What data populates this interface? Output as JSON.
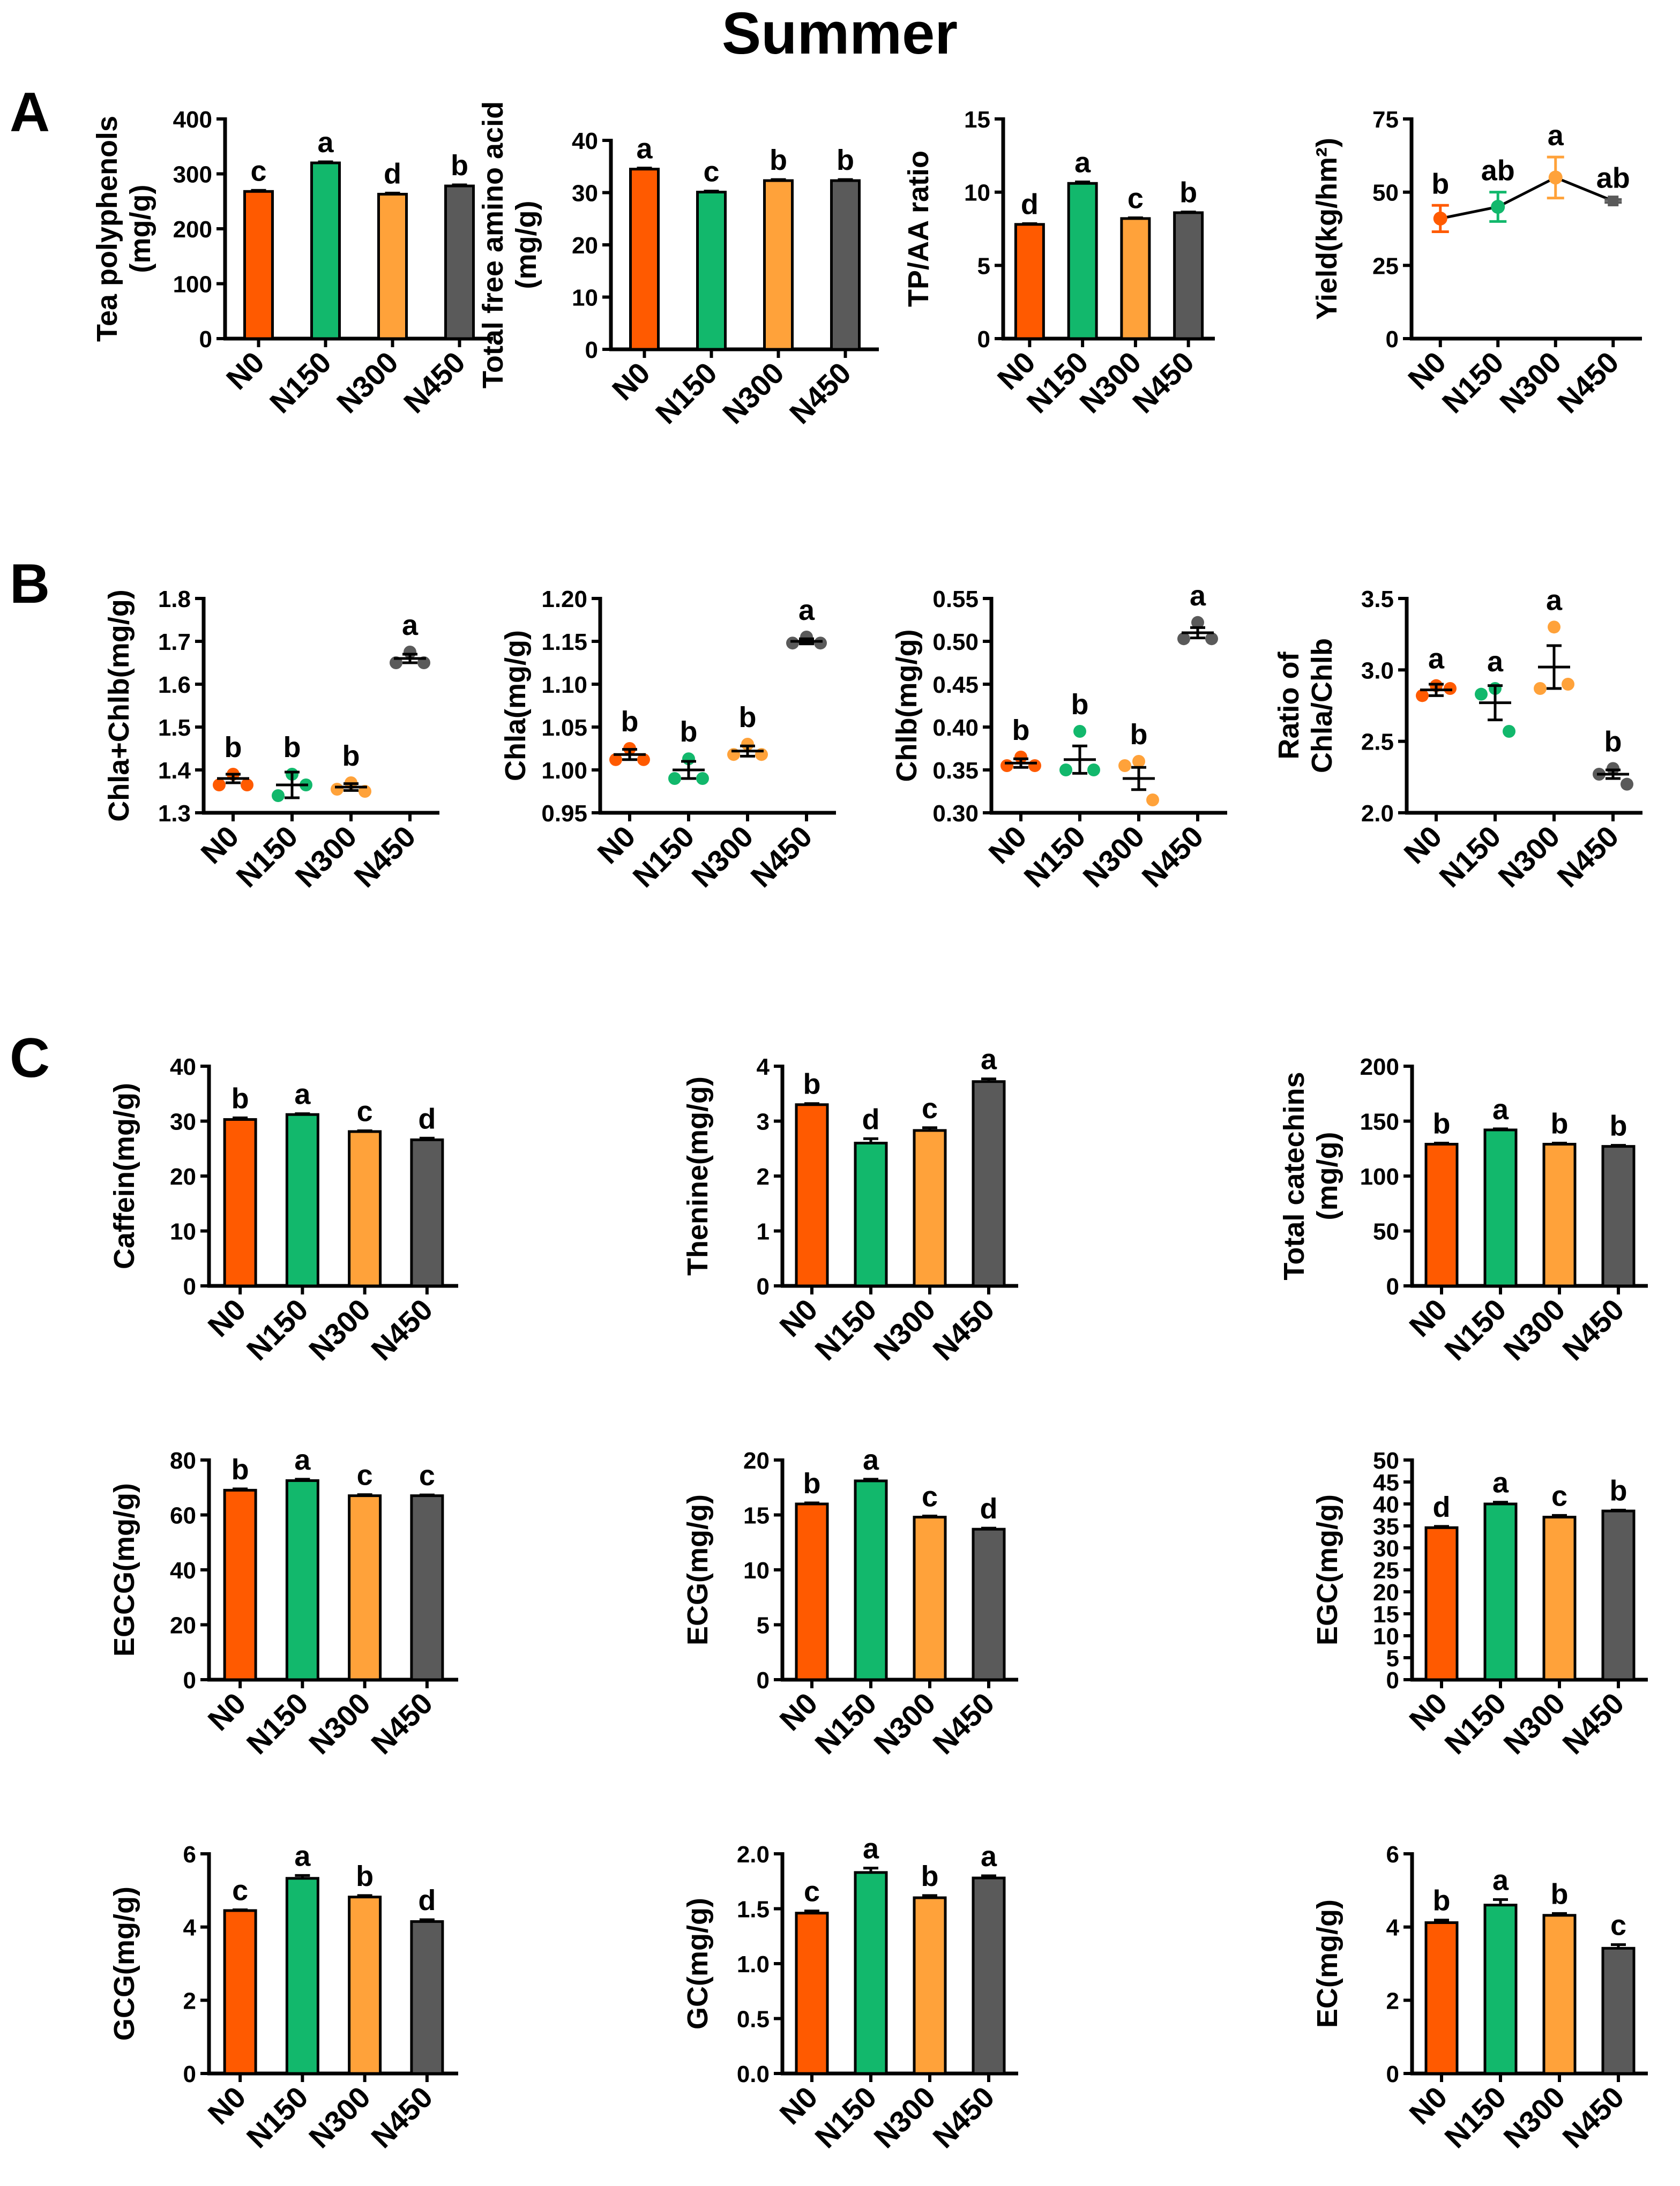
{
  "figure_title": "Summer",
  "panel_letters": [
    "A",
    "B",
    "C"
  ],
  "colors": {
    "N0": "#ff5a00",
    "N150": "#12b86c",
    "N300": "#ffa23a",
    "N450": "#5a5a5a"
  },
  "chart_data": [
    {
      "type": "bar",
      "panel": "A",
      "categories": [
        "N0",
        "N150",
        "N300",
        "N450"
      ],
      "ylabel": [
        "Tea polyphenols",
        "(mg/g)"
      ],
      "ylim": [
        0,
        400
      ],
      "yticks": [
        0,
        100,
        200,
        300,
        400
      ],
      "values": [
        268,
        320,
        263,
        278
      ],
      "errors": [
        2,
        2,
        2,
        2
      ],
      "letters": [
        "c",
        "a",
        "d",
        "b"
      ]
    },
    {
      "type": "bar",
      "panel": "A",
      "categories": [
        "N0",
        "N150",
        "N300",
        "N450"
      ],
      "ylabel": [
        "Total free amino acid",
        "(mg/g)"
      ],
      "ylim": [
        0,
        40
      ],
      "yticks": [
        0,
        10,
        20,
        30,
        40
      ],
      "values": [
        34.5,
        30.1,
        32.3,
        32.3
      ],
      "errors": [
        0.2,
        0.2,
        0.2,
        0.2
      ],
      "letters": [
        "a",
        "c",
        "b",
        "b"
      ]
    },
    {
      "type": "bar",
      "panel": "A",
      "categories": [
        "N0",
        "N150",
        "N300",
        "N450"
      ],
      "ylabel": [
        "TP/AA ratio"
      ],
      "ylim": [
        0,
        15
      ],
      "yticks": [
        0,
        5,
        10,
        15
      ],
      "values": [
        7.8,
        10.6,
        8.2,
        8.6
      ],
      "errors": [
        0.05,
        0.1,
        0.05,
        0.05
      ],
      "letters": [
        "d",
        "a",
        "c",
        "b"
      ]
    },
    {
      "type": "line",
      "panel": "A",
      "categories": [
        "N0",
        "N150",
        "N300",
        "N450"
      ],
      "ylabel": [
        "Yield(kg/hm²)"
      ],
      "ylim": [
        0,
        75
      ],
      "yticks": [
        0,
        25,
        50,
        75
      ],
      "values": [
        41,
        45,
        55,
        47
      ],
      "errors": [
        4.5,
        5,
        7,
        0.5
      ],
      "letters": [
        "b",
        "ab",
        "a",
        "ab"
      ]
    },
    {
      "type": "scatter",
      "panel": "B",
      "categories": [
        "N0",
        "N150",
        "N300",
        "N450"
      ],
      "ylabel": [
        "Chla+Chlb(mg/g)"
      ],
      "ylim": [
        1.3,
        1.8
      ],
      "yticks": [
        1.3,
        1.4,
        1.5,
        1.6,
        1.7,
        1.8
      ],
      "tick_decimals": 1,
      "means": [
        1.38,
        1.365,
        1.36,
        1.66
      ],
      "errors": [
        0.01,
        0.03,
        0.008,
        0.01
      ],
      "points": [
        [
          1.39,
          1.365,
          1.365
        ],
        [
          1.39,
          1.34,
          1.365
        ],
        [
          1.37,
          1.355,
          1.35
        ],
        [
          1.675,
          1.65,
          1.65
        ]
      ],
      "letters": [
        "b",
        "b",
        "b",
        "a"
      ]
    },
    {
      "type": "scatter",
      "panel": "B",
      "categories": [
        "N0",
        "N150",
        "N300",
        "N450"
      ],
      "ylabel": [
        "Chla(mg/g)"
      ],
      "ylim": [
        0.95,
        1.2
      ],
      "yticks": [
        0.95,
        1.0,
        1.05,
        1.1,
        1.15,
        1.2
      ],
      "tick_decimals": 2,
      "means": [
        1.018,
        1.0,
        1.022,
        1.15
      ],
      "errors": [
        0.006,
        0.01,
        0.006,
        0.003
      ],
      "points": [
        [
          1.025,
          1.012,
          1.012
        ],
        [
          1.013,
          0.99,
          0.99
        ],
        [
          1.03,
          1.018,
          1.018
        ],
        [
          1.155,
          1.148,
          1.148
        ]
      ],
      "letters": [
        "b",
        "b",
        "b",
        "a"
      ]
    },
    {
      "type": "scatter",
      "panel": "B",
      "categories": [
        "N0",
        "N150",
        "N300",
        "N450"
      ],
      "ylabel": [
        "Chlb(mg/g)"
      ],
      "ylim": [
        0.3,
        0.55
      ],
      "yticks": [
        0.3,
        0.35,
        0.4,
        0.45,
        0.5,
        0.55
      ],
      "tick_decimals": 2,
      "means": [
        0.358,
        0.362,
        0.34,
        0.51
      ],
      "errors": [
        0.005,
        0.016,
        0.013,
        0.006
      ],
      "points": [
        [
          0.365,
          0.355,
          0.355
        ],
        [
          0.395,
          0.35,
          0.35
        ],
        [
          0.36,
          0.355,
          0.315
        ],
        [
          0.522,
          0.503,
          0.503
        ]
      ],
      "letters": [
        "b",
        "b",
        "b",
        "a"
      ]
    },
    {
      "type": "scatter",
      "panel": "B",
      "categories": [
        "N0",
        "N150",
        "N300",
        "N450"
      ],
      "ylabel": [
        "Ratio of",
        "Chla/Chlb"
      ],
      "ylim": [
        2.0,
        3.5
      ],
      "yticks": [
        2.0,
        2.5,
        3.0,
        3.5
      ],
      "tick_decimals": 1,
      "means": [
        2.86,
        2.77,
        3.02,
        2.27
      ],
      "errors": [
        0.04,
        0.12,
        0.15,
        0.03
      ],
      "points": [
        [
          2.89,
          2.82,
          2.87
        ],
        [
          2.87,
          2.83,
          2.57
        ],
        [
          3.3,
          2.87,
          2.9
        ],
        [
          2.31,
          2.27,
          2.2
        ]
      ],
      "letters": [
        "a",
        "a",
        "a",
        "b"
      ]
    },
    {
      "type": "bar",
      "panel": "C",
      "categories": [
        "N0",
        "N150",
        "N300",
        "N450"
      ],
      "ylabel": [
        "Caffein(mg/g)"
      ],
      "ylim": [
        0,
        40
      ],
      "yticks": [
        0,
        10,
        20,
        30,
        40
      ],
      "values": [
        30.3,
        31.2,
        28.1,
        26.6
      ],
      "errors": [
        0.3,
        0.15,
        0.15,
        0.3
      ],
      "letters": [
        "b",
        "a",
        "c",
        "d"
      ]
    },
    {
      "type": "bar",
      "panel": "C",
      "categories": [
        "N0",
        "N150",
        "N300",
        "N450"
      ],
      "ylabel": [
        "Thenine(mg/g)"
      ],
      "ylim": [
        0,
        4
      ],
      "yticks": [
        0,
        1,
        2,
        3,
        4
      ],
      "values": [
        3.3,
        2.6,
        2.83,
        3.72
      ],
      "errors": [
        0.02,
        0.08,
        0.05,
        0.05
      ],
      "letters": [
        "b",
        "d",
        "c",
        "a"
      ]
    },
    {
      "type": "bar",
      "panel": "C",
      "categories": [
        "N0",
        "N150",
        "N300",
        "N450"
      ],
      "ylabel": [
        "Total catechins",
        "(mg/g)"
      ],
      "ylim": [
        0,
        200
      ],
      "yticks": [
        0,
        50,
        100,
        150,
        200
      ],
      "values": [
        129,
        142,
        129,
        127
      ],
      "errors": [
        1,
        1,
        1,
        1
      ],
      "letters": [
        "b",
        "a",
        "b",
        "b"
      ]
    },
    {
      "type": "bar",
      "panel": "C",
      "categories": [
        "N0",
        "N150",
        "N300",
        "N450"
      ],
      "ylabel": [
        "EGCG(mg/g)"
      ],
      "ylim": [
        0,
        80
      ],
      "yticks": [
        0,
        20,
        40,
        60,
        80
      ],
      "values": [
        69,
        72.5,
        67,
        67
      ],
      "errors": [
        0.5,
        0.5,
        0.4,
        0.3
      ],
      "letters": [
        "b",
        "a",
        "c",
        "c"
      ]
    },
    {
      "type": "bar",
      "panel": "C",
      "categories": [
        "N0",
        "N150",
        "N300",
        "N450"
      ],
      "ylabel": [
        "ECG(mg/g)"
      ],
      "ylim": [
        0,
        20
      ],
      "yticks": [
        0,
        5,
        10,
        15,
        20
      ],
      "values": [
        16,
        18.1,
        14.8,
        13.7
      ],
      "errors": [
        0.1,
        0.15,
        0.1,
        0.1
      ],
      "letters": [
        "b",
        "a",
        "c",
        "d"
      ]
    },
    {
      "type": "bar",
      "panel": "C",
      "categories": [
        "N0",
        "N150",
        "N300",
        "N450"
      ],
      "ylabel": [
        "EGC(mg/g)"
      ],
      "ylim": [
        0,
        50
      ],
      "yticks": [
        0,
        5,
        10,
        15,
        20,
        25,
        30,
        35,
        40,
        45,
        50
      ],
      "values": [
        34.6,
        40,
        37,
        38.4
      ],
      "errors": [
        0.3,
        0.4,
        0.4,
        0.2
      ],
      "letters": [
        "d",
        "a",
        "c",
        "b"
      ]
    },
    {
      "type": "bar",
      "panel": "C",
      "categories": [
        "N0",
        "N150",
        "N300",
        "N450"
      ],
      "ylabel": [
        "GCG(mg/g)"
      ],
      "ylim": [
        0,
        6
      ],
      "yticks": [
        0,
        2,
        4,
        6
      ],
      "values": [
        4.45,
        5.33,
        4.82,
        4.15
      ],
      "errors": [
        0.02,
        0.08,
        0.04,
        0.05
      ],
      "letters": [
        "c",
        "a",
        "b",
        "d"
      ]
    },
    {
      "type": "bar",
      "panel": "C",
      "categories": [
        "N0",
        "N150",
        "N300",
        "N450"
      ],
      "ylabel": [
        "GC(mg/g)"
      ],
      "ylim": [
        0,
        2.0
      ],
      "yticks": [
        0,
        0.5,
        1.0,
        1.5,
        2.0
      ],
      "tick_decimals": 1,
      "values": [
        1.46,
        1.83,
        1.6,
        1.78
      ],
      "errors": [
        0.02,
        0.04,
        0.02,
        0.02
      ],
      "letters": [
        "c",
        "a",
        "b",
        "a"
      ]
    },
    {
      "type": "bar",
      "panel": "C",
      "categories": [
        "N0",
        "N150",
        "N300",
        "N450"
      ],
      "ylabel": [
        "EC(mg/g)"
      ],
      "ylim": [
        0,
        6
      ],
      "yticks": [
        0,
        2,
        4,
        6
      ],
      "values": [
        4.12,
        4.6,
        4.32,
        3.42
      ],
      "errors": [
        0.07,
        0.15,
        0.05,
        0.1
      ],
      "letters": [
        "b",
        "a",
        "b",
        "c"
      ]
    }
  ]
}
